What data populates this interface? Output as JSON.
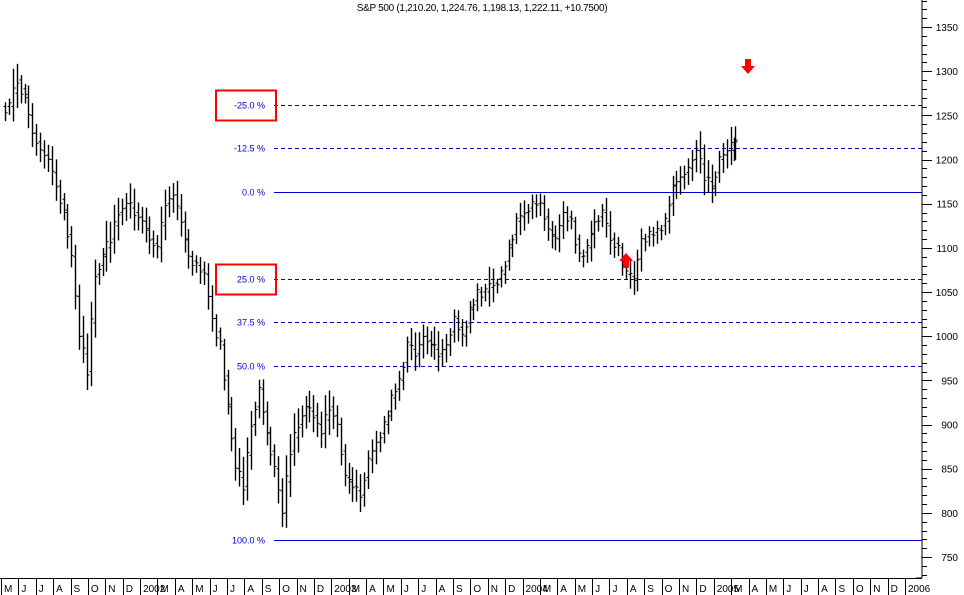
{
  "title": "S&P 500 (1,210.20, 1,224.76, 1,198.13, 1,222.11, +10.7500)",
  "colors": {
    "bars": "#000000",
    "fib_lines": "#0000cc",
    "highlight": "#ff0000",
    "background": "#ffffff"
  },
  "chart_data": {
    "type": "ohlc",
    "title": "S&P 500 (1,210.20, 1,224.76, 1,198.13, 1,222.11, +10.7500)",
    "last_bar": {
      "open": 1210.2,
      "high": 1224.76,
      "low": 1198.13,
      "close": 1222.11,
      "change": 10.75
    },
    "xlabel": "",
    "ylabel": "",
    "ylim": [
      725,
      1390
    ],
    "y_ticks": [
      750,
      800,
      850,
      900,
      950,
      1000,
      1050,
      1100,
      1150,
      1200,
      1250,
      1300,
      1350
    ],
    "x_tick_labels": [
      "M",
      "J",
      "J",
      "A",
      "S",
      "O",
      "N",
      "D",
      "2002",
      "M",
      "A",
      "M",
      "J",
      "J",
      "A",
      "S",
      "O",
      "N",
      "D",
      "2003",
      "M",
      "A",
      "M",
      "J",
      "J",
      "A",
      "S",
      "O",
      "N",
      "D",
      "2004",
      "M",
      "A",
      "M",
      "J",
      "J",
      "A",
      "S",
      "O",
      "N",
      "D",
      "2005",
      "M",
      "A",
      "M",
      "J",
      "J",
      "A",
      "S",
      "O",
      "N",
      "D",
      "2006"
    ],
    "fibonacci_levels": [
      {
        "label": "-25.0 %",
        "value": 1262,
        "style": "dashed",
        "highlighted": true
      },
      {
        "label": "-12.5 %",
        "value": 1213,
        "style": "dashed",
        "highlighted": false
      },
      {
        "label": "0.0 %",
        "value": 1163,
        "style": "solid",
        "highlighted": false
      },
      {
        "label": "25.0 %",
        "value": 1065,
        "style": "dashed",
        "highlighted": true
      },
      {
        "label": "37.5 %",
        "value": 1016,
        "style": "dashed",
        "highlighted": false
      },
      {
        "label": "50.0 %",
        "value": 966,
        "style": "dashed",
        "highlighted": false
      },
      {
        "label": "100.0 %",
        "value": 769,
        "style": "solid",
        "highlighted": false
      }
    ],
    "annotations": [
      {
        "type": "arrow-down",
        "color": "#ff0000",
        "near": "-25.0 % level, ~Apr 2005"
      },
      {
        "type": "arrow-up",
        "color": "#ff0000",
        "near": "25.0 % level, Aug 2004 low"
      }
    ],
    "approx_weekly_closes": {
      "description": "Approximate weekly price path read from bars (May 2001 – Mar 2005)",
      "points": [
        [
          "2001-05",
          1260
        ],
        [
          "2001-05",
          1290
        ],
        [
          "2001-06",
          1270
        ],
        [
          "2001-06",
          1230
        ],
        [
          "2001-07",
          1210
        ],
        [
          "2001-07",
          1200
        ],
        [
          "2001-08",
          1170
        ],
        [
          "2001-08",
          1140
        ],
        [
          "2001-09",
          1090
        ],
        [
          "2001-09",
          1000
        ],
        [
          "2001-09",
          960
        ],
        [
          "2001-10",
          1070
        ],
        [
          "2001-10",
          1090
        ],
        [
          "2001-11",
          1110
        ],
        [
          "2001-11",
          1140
        ],
        [
          "2001-12",
          1150
        ],
        [
          "2002-01",
          1140
        ],
        [
          "2002-01",
          1130
        ],
        [
          "2002-02",
          1110
        ],
        [
          "2002-02",
          1100
        ],
        [
          "2002-03",
          1150
        ],
        [
          "2002-03",
          1160
        ],
        [
          "2002-04",
          1130
        ],
        [
          "2002-04",
          1090
        ],
        [
          "2002-05",
          1080
        ],
        [
          "2002-05",
          1070
        ],
        [
          "2002-06",
          1020
        ],
        [
          "2002-06",
          990
        ],
        [
          "2002-07",
          920
        ],
        [
          "2002-07",
          850
        ],
        [
          "2002-07",
          830
        ],
        [
          "2002-08",
          900
        ],
        [
          "2002-08",
          940
        ],
        [
          "2002-09",
          890
        ],
        [
          "2002-09",
          850
        ],
        [
          "2002-10",
          800
        ],
        [
          "2002-10",
          870
        ],
        [
          "2002-11",
          900
        ],
        [
          "2002-11",
          920
        ],
        [
          "2002-12",
          910
        ],
        [
          "2002-12",
          890
        ],
        [
          "2003-01",
          920
        ],
        [
          "2003-01",
          900
        ],
        [
          "2003-02",
          840
        ],
        [
          "2003-02",
          830
        ],
        [
          "2003-03",
          820
        ],
        [
          "2003-03",
          860
        ],
        [
          "2003-04",
          880
        ],
        [
          "2003-04",
          900
        ],
        [
          "2003-05",
          930
        ],
        [
          "2003-05",
          950
        ],
        [
          "2003-06",
          990
        ],
        [
          "2003-06",
          980
        ],
        [
          "2003-07",
          1000
        ],
        [
          "2003-07",
          990
        ],
        [
          "2003-08",
          980
        ],
        [
          "2003-08",
          990
        ],
        [
          "2003-09",
          1020
        ],
        [
          "2003-09",
          1000
        ],
        [
          "2003-10",
          1030
        ],
        [
          "2003-10",
          1050
        ],
        [
          "2003-11",
          1050
        ],
        [
          "2003-11",
          1060
        ],
        [
          "2003-12",
          1070
        ],
        [
          "2003-12",
          1100
        ],
        [
          "2004-01",
          1130
        ],
        [
          "2004-01",
          1140
        ],
        [
          "2004-02",
          1150
        ],
        [
          "2004-02",
          1150
        ],
        [
          "2004-03",
          1120
        ],
        [
          "2004-03",
          1110
        ],
        [
          "2004-04",
          1140
        ],
        [
          "2004-04",
          1130
        ],
        [
          "2004-05",
          1090
        ],
        [
          "2004-05",
          1100
        ],
        [
          "2004-06",
          1130
        ],
        [
          "2004-06",
          1140
        ],
        [
          "2004-07",
          1110
        ],
        [
          "2004-07",
          1100
        ],
        [
          "2004-08",
          1070
        ],
        [
          "2004-08",
          1065
        ],
        [
          "2004-09",
          1110
        ],
        [
          "2004-09",
          1115
        ],
        [
          "2004-10",
          1120
        ],
        [
          "2004-10",
          1130
        ],
        [
          "2004-11",
          1170
        ],
        [
          "2004-11",
          1180
        ],
        [
          "2004-12",
          1190
        ],
        [
          "2004-12",
          1210
        ],
        [
          "2005-01",
          1180
        ],
        [
          "2005-01",
          1170
        ],
        [
          "2005-02",
          1200
        ],
        [
          "2005-02",
          1210
        ],
        [
          "2005-03",
          1222
        ]
      ]
    },
    "grid": false,
    "legend": "none"
  },
  "axis": {
    "y_labels": [
      "1350",
      "1300",
      "1250",
      "1200",
      "1150",
      "1100",
      "1050",
      "1000",
      "950",
      "900",
      "850",
      "800",
      "750"
    ],
    "x_labels": [
      "M",
      "J",
      "J",
      "A",
      "S",
      "O",
      "N",
      "D",
      "2002",
      "M",
      "A",
      "M",
      "J",
      "J",
      "A",
      "S",
      "O",
      "N",
      "D",
      "2003",
      "M",
      "A",
      "M",
      "J",
      "J",
      "A",
      "S",
      "O",
      "N",
      "D",
      "2004",
      "M",
      "A",
      "M",
      "J",
      "J",
      "A",
      "S",
      "O",
      "N",
      "D",
      "2005",
      "M",
      "A",
      "M",
      "J",
      "J",
      "A",
      "S",
      "O",
      "N",
      "D",
      "2006"
    ]
  },
  "fib_labels": [
    "-25.0 %",
    "-12.5 %",
    "0.0 %",
    "25.0 %",
    "37.5 %",
    "50.0 %",
    "100.0 %"
  ]
}
